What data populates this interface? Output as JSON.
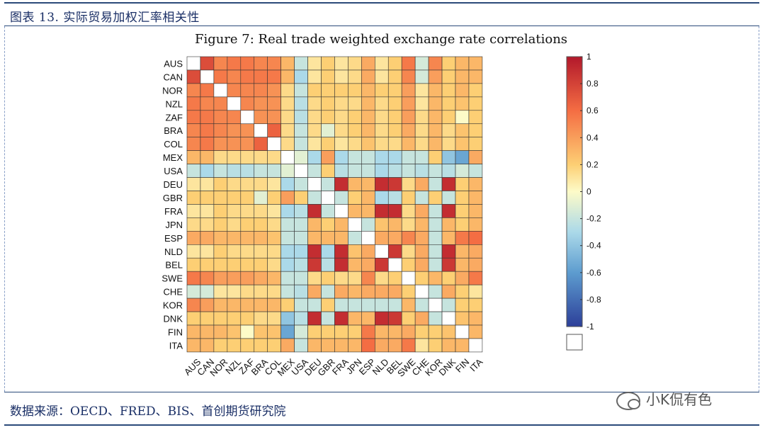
{
  "header": {
    "title": "图表 13. 实际贸易加权汇率相关性"
  },
  "footer": {
    "source": "数据来源：OECD、FRED、BIS、首创期货研究院"
  },
  "watermark": {
    "text": "小K侃有色",
    "icon": "wechat-icon"
  },
  "chart_data": {
    "type": "heatmap",
    "title": "Figure 7: Real trade weighted exchange rate correlations",
    "rows": [
      "AUS",
      "CAN",
      "NOR",
      "NZL",
      "ZAF",
      "BRA",
      "COL",
      "MEX",
      "USA",
      "DEU",
      "GBR",
      "FRA",
      "JPN",
      "ESP",
      "NLD",
      "BEL",
      "SWE",
      "CHE",
      "KOR",
      "DNK",
      "FIN",
      "ITA"
    ],
    "cols": [
      "AUS",
      "CAN",
      "NOR",
      "NZL",
      "ZAF",
      "BRA",
      "COL",
      "MEX",
      "USA",
      "DEU",
      "GBR",
      "FRA",
      "JPN",
      "ESP",
      "NLD",
      "BEL",
      "SWE",
      "CHE",
      "KOR",
      "DNK",
      "FIN",
      "ITA"
    ],
    "values": [
      [
        1,
        0.75,
        0.5,
        0.55,
        0.55,
        0.5,
        0.5,
        0.3,
        -0.2,
        0.1,
        0.2,
        0.1,
        0.15,
        0.35,
        0.1,
        0.2,
        0.55,
        -0.15,
        0.5,
        0.2,
        0.3,
        0.3
      ],
      [
        0.75,
        1,
        0.55,
        0.5,
        0.55,
        0.55,
        0.55,
        0.3,
        -0.3,
        0.1,
        0.2,
        0.1,
        0.15,
        0.35,
        0.1,
        0.2,
        0.5,
        -0.15,
        0.4,
        0.2,
        0.3,
        0.3
      ],
      [
        0.5,
        0.55,
        1,
        0.5,
        0.5,
        0.5,
        0.45,
        0.15,
        -0.2,
        0.2,
        0.2,
        0.2,
        0.2,
        0.3,
        0.2,
        0.2,
        0.4,
        0.1,
        0.3,
        0.2,
        0.3,
        0.2
      ],
      [
        0.55,
        0.5,
        0.5,
        1,
        0.5,
        0.45,
        0.45,
        0.15,
        -0.25,
        0.15,
        0.2,
        0.15,
        0.15,
        0.3,
        0.15,
        0.2,
        0.4,
        0.1,
        0.3,
        0.2,
        0.25,
        0.2
      ],
      [
        0.55,
        0.55,
        0.5,
        0.5,
        1,
        0.45,
        0.45,
        0.15,
        -0.25,
        0.15,
        0.2,
        0.15,
        0.2,
        0.3,
        0.15,
        0.2,
        0.4,
        0.15,
        0.3,
        0.2,
        0.0,
        0.2
      ],
      [
        0.5,
        0.55,
        0.5,
        0.45,
        0.45,
        1,
        0.65,
        0.15,
        -0.2,
        0.15,
        -0.1,
        0.15,
        0.2,
        0.3,
        0.15,
        0.2,
        0.35,
        0.15,
        0.3,
        0.15,
        0.25,
        0.2
      ],
      [
        0.5,
        0.55,
        0.45,
        0.45,
        0.45,
        0.65,
        1,
        0.15,
        -0.2,
        0.1,
        0.2,
        0.1,
        0.15,
        0.25,
        0.15,
        0.15,
        0.3,
        0.15,
        0.3,
        0.15,
        0.25,
        0.2
      ],
      [
        0.3,
        0.3,
        0.15,
        0.15,
        0.15,
        0.15,
        0.15,
        1,
        -0.1,
        -0.3,
        0.4,
        -0.3,
        -0.2,
        -0.2,
        -0.3,
        -0.3,
        -0.2,
        -0.2,
        0.2,
        -0.4,
        -0.55,
        0.35
      ],
      [
        -0.2,
        -0.3,
        -0.2,
        -0.25,
        -0.25,
        -0.2,
        -0.2,
        -0.1,
        1,
        -0.2,
        0.2,
        -0.25,
        -0.2,
        -0.2,
        -0.3,
        -0.25,
        -0.2,
        -0.25,
        -0.2,
        -0.25,
        -0.15,
        -0.2
      ],
      [
        0.1,
        0.1,
        0.2,
        0.15,
        0.15,
        0.15,
        0.1,
        -0.3,
        -0.2,
        1,
        -0.2,
        0.9,
        0.3,
        0.3,
        0.9,
        0.85,
        0.15,
        0.35,
        -0.2,
        0.9,
        0.2,
        0.3
      ],
      [
        0.2,
        0.2,
        0.2,
        0.2,
        0.2,
        -0.1,
        0.2,
        0.4,
        0.2,
        -0.2,
        1,
        -0.2,
        0.2,
        0.3,
        -0.3,
        -0.25,
        0.2,
        -0.2,
        0.2,
        -0.2,
        0.2,
        0.3
      ],
      [
        0.1,
        0.1,
        0.2,
        0.15,
        0.15,
        0.15,
        0.1,
        -0.3,
        -0.25,
        0.9,
        -0.2,
        1,
        0.3,
        0.3,
        0.9,
        0.9,
        0.15,
        0.35,
        -0.2,
        0.9,
        0.2,
        0.3
      ],
      [
        0.15,
        0.15,
        0.2,
        0.15,
        0.2,
        0.2,
        0.15,
        -0.2,
        -0.2,
        0.3,
        0.2,
        0.3,
        1,
        -0.2,
        0.25,
        0.3,
        0.15,
        0.3,
        -0.2,
        0.3,
        0.2,
        0.3
      ],
      [
        0.35,
        0.35,
        0.3,
        0.3,
        0.3,
        0.3,
        0.25,
        -0.2,
        -0.2,
        0.3,
        0.3,
        0.3,
        -0.2,
        1,
        0.35,
        0.35,
        0.5,
        0.35,
        -0.2,
        0.3,
        0.55,
        0.6
      ],
      [
        0.1,
        0.1,
        0.2,
        0.15,
        0.15,
        0.15,
        0.15,
        -0.3,
        -0.3,
        0.9,
        -0.3,
        0.9,
        0.25,
        0.35,
        1,
        0.85,
        0.15,
        0.35,
        -0.2,
        0.9,
        0.3,
        0.35
      ],
      [
        0.2,
        0.2,
        0.2,
        0.2,
        0.2,
        0.2,
        0.15,
        -0.3,
        -0.25,
        0.85,
        -0.25,
        0.9,
        0.3,
        0.35,
        0.85,
        1,
        0.2,
        0.35,
        -0.2,
        0.85,
        0.3,
        0.35
      ],
      [
        0.55,
        0.5,
        0.4,
        0.4,
        0.4,
        0.35,
        0.3,
        -0.2,
        -0.2,
        0.15,
        0.2,
        0.15,
        0.15,
        0.5,
        0.15,
        0.2,
        1,
        0.2,
        0.3,
        0.2,
        0.35,
        0.55
      ],
      [
        -0.15,
        -0.15,
        0.1,
        0.1,
        0.15,
        0.15,
        0.15,
        -0.2,
        -0.25,
        0.35,
        -0.2,
        0.35,
        0.3,
        0.35,
        0.35,
        0.35,
        0.2,
        1,
        -0.2,
        0.35,
        0.2,
        0.1
      ],
      [
        0.5,
        0.4,
        0.3,
        0.3,
        0.3,
        0.3,
        0.3,
        0.2,
        -0.2,
        -0.2,
        0.2,
        -0.2,
        -0.2,
        -0.2,
        -0.2,
        -0.2,
        0.3,
        -0.2,
        1,
        -0.2,
        0.2,
        0.2
      ],
      [
        0.2,
        0.2,
        0.2,
        0.2,
        0.2,
        0.15,
        0.15,
        -0.4,
        -0.25,
        0.9,
        -0.2,
        0.9,
        0.3,
        0.3,
        0.9,
        0.85,
        0.2,
        0.35,
        -0.2,
        1,
        0.25,
        0.3
      ],
      [
        0.3,
        0.3,
        0.3,
        0.25,
        0.0,
        0.25,
        0.25,
        -0.55,
        -0.15,
        0.2,
        0.2,
        0.2,
        0.2,
        0.55,
        0.3,
        0.3,
        0.35,
        0.2,
        0.2,
        0.25,
        1,
        0.3
      ],
      [
        0.3,
        0.3,
        0.2,
        0.2,
        0.2,
        0.2,
        0.2,
        0.35,
        -0.2,
        0.3,
        0.3,
        0.3,
        0.3,
        0.6,
        0.35,
        0.35,
        0.55,
        0.1,
        0.2,
        0.3,
        0.3,
        1
      ]
    ],
    "diagonal": "blank",
    "colorbar": {
      "min": -1,
      "max": 1,
      "ticks": [
        "1",
        "0.8",
        "0.6",
        "0.4",
        "0.2",
        "0",
        "-0.2",
        "-0.4",
        "-0.6",
        "-0.8",
        "-1"
      ]
    },
    "colors": {
      "high": "#b2182b",
      "mid": "#fdfbc8",
      "low": "#2c3f99"
    }
  }
}
